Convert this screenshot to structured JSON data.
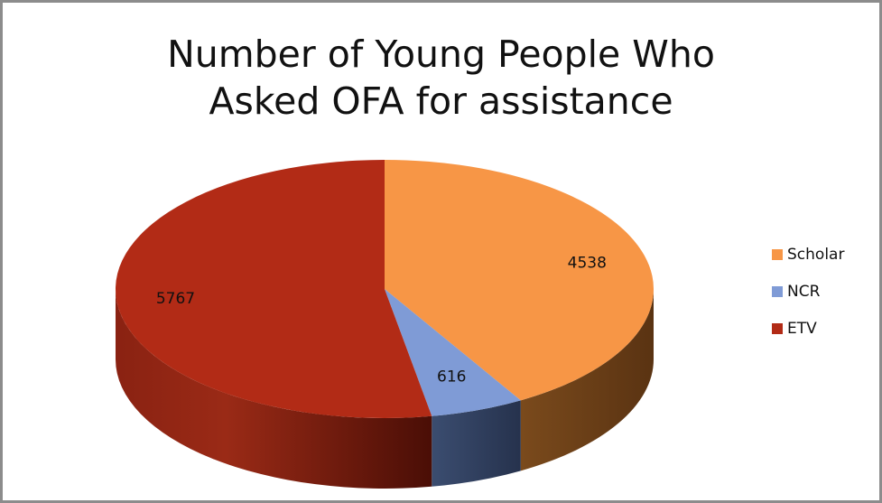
{
  "chart_data": {
    "type": "pie",
    "title_lines": [
      "Number of Young People Who",
      "Asked OFA for assistance"
    ],
    "slices": [
      {
        "label": "Scholar",
        "value": 4538,
        "color": "#f79646"
      },
      {
        "label": "NCR",
        "value": 616,
        "color": "#7f9bd6"
      },
      {
        "label": "ETV",
        "value": 5767,
        "color": "#b22b16"
      }
    ],
    "legend_position": "right",
    "style": "3d"
  }
}
